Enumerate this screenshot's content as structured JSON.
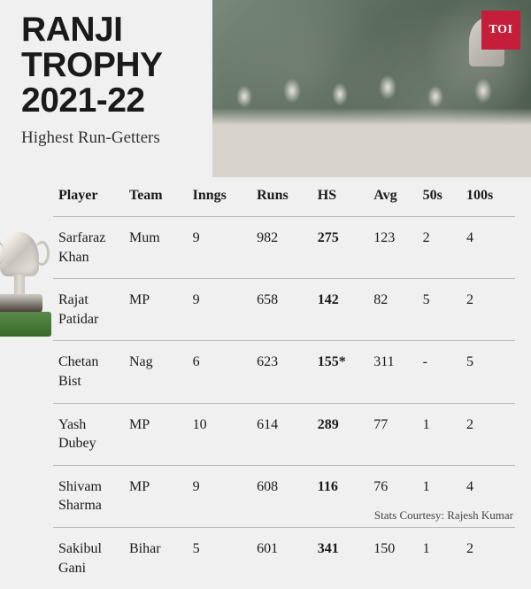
{
  "badge": "TOI",
  "title": {
    "line1": "RANJI",
    "line2": "TROPHY",
    "line3": "2021-22"
  },
  "subtitle": "Highest Run-Getters",
  "table": {
    "columns": [
      "Player",
      "Team",
      "Inngs",
      "Runs",
      "HS",
      "Avg",
      "50s",
      "100s"
    ],
    "rows": [
      {
        "player": "Sarfaraz Khan",
        "team": "Mum",
        "inngs": "9",
        "runs": "982",
        "hs": "275",
        "avg": "123",
        "fifties": "2",
        "hundreds": "4"
      },
      {
        "player": "Rajat Patidar",
        "team": "MP",
        "inngs": "9",
        "runs": "658",
        "hs": "142",
        "avg": "82",
        "fifties": "5",
        "hundreds": "2"
      },
      {
        "player": "Chetan Bist",
        "team": "Nag",
        "inngs": "6",
        "runs": "623",
        "hs": "155*",
        "avg": "311",
        "fifties": "-",
        "hundreds": "5"
      },
      {
        "player": "Yash Dubey",
        "team": "MP",
        "inngs": "10",
        "runs": "614",
        "hs": "289",
        "avg": "77",
        "fifties": "1",
        "hundreds": "2"
      },
      {
        "player": "Shivam Sharma",
        "team": "MP",
        "inngs": "9",
        "runs": "608",
        "hs": "116",
        "avg": "76",
        "fifties": "1",
        "hundreds": "4"
      },
      {
        "player": "Sakibul Gani",
        "team": "Bihar",
        "inngs": "5",
        "runs": "601",
        "hs": "341",
        "avg": "150",
        "fifties": "1",
        "hundreds": "2"
      }
    ]
  },
  "credits": "Stats Courtesy: Rajesh Kumar",
  "colors": {
    "badge_bg": "#c41e3a",
    "text": "#1a1a1a",
    "divider": "#bbbbbb",
    "page_bg": "#f0f0f0"
  },
  "typography": {
    "title_fontsize": 39,
    "title_weight": 800,
    "subtitle_fontsize": 19,
    "table_fontsize": 16,
    "credits_fontsize": 13
  }
}
